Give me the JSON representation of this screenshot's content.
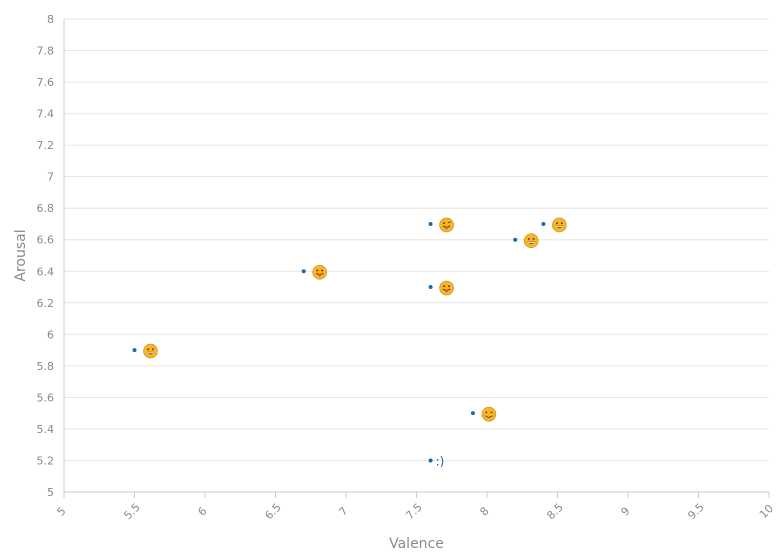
{
  "chart_data": {
    "type": "scatter",
    "title": "",
    "xlabel": "Valence",
    "ylabel": "Arousal",
    "xlim": [
      5,
      10
    ],
    "ylim": [
      5,
      8
    ],
    "x_ticks": [
      "5",
      "5.5",
      "6",
      "6.5",
      "7",
      "7.5",
      "8",
      "8.5",
      "9",
      "9.5",
      "10"
    ],
    "y_ticks": [
      "5",
      "5.2",
      "5.4",
      "5.6",
      "5.8",
      "6",
      "6.2",
      "6.4",
      "6.6",
      "6.8",
      "7",
      "7.2",
      "7.4",
      "7.6",
      "7.8",
      "8"
    ],
    "grid": true,
    "points": [
      {
        "x": 5.5,
        "y": 5.9,
        "label": "😀",
        "kind": "grin"
      },
      {
        "x": 6.7,
        "y": 6.4,
        "label": "😛",
        "kind": "tongue"
      },
      {
        "x": 7.6,
        "y": 6.7,
        "label": "😜",
        "kind": "wink-tongue"
      },
      {
        "x": 7.6,
        "y": 6.3,
        "label": "😛",
        "kind": "tongue"
      },
      {
        "x": 7.6,
        "y": 5.2,
        "label": ":)",
        "kind": "text"
      },
      {
        "x": 7.9,
        "y": 5.5,
        "label": "😊",
        "kind": "smile"
      },
      {
        "x": 8.2,
        "y": 6.6,
        "label": "😀",
        "kind": "grin"
      },
      {
        "x": 8.4,
        "y": 6.7,
        "label": "😀",
        "kind": "grin"
      }
    ]
  },
  "colors": {
    "point": "#1f6aa5",
    "emoji_face": "#f5b62a",
    "grid": "#e6e6e6",
    "axis_text": "#8a8a8a"
  }
}
